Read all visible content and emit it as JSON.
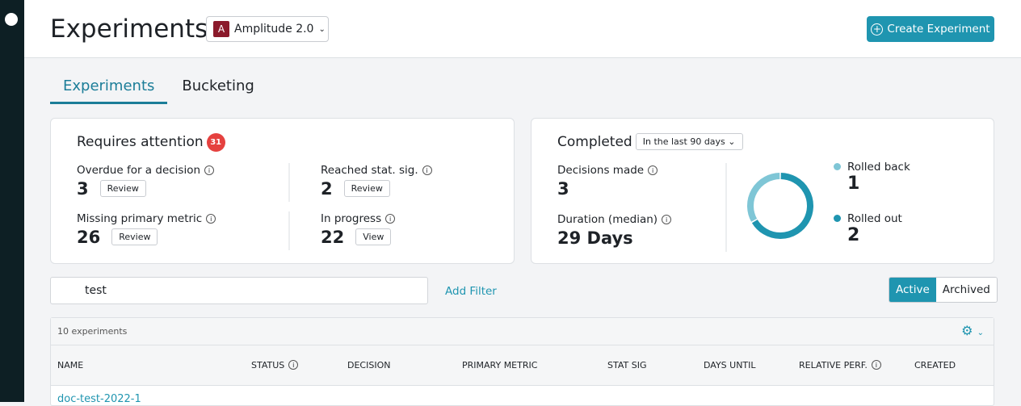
{
  "sidebar": {
    "logo": "A"
  },
  "header": {
    "title": "Experiments",
    "project": {
      "badge": "A",
      "name": "Amplitude 2.0"
    },
    "create_label": "Create Experiment"
  },
  "tabs": [
    {
      "label": "Experiments",
      "active": true
    },
    {
      "label": "Bucketing",
      "active": false
    }
  ],
  "attention": {
    "title": "Requires attention",
    "count": "31",
    "stats": [
      {
        "label": "Overdue for a decision",
        "value": "3",
        "button": "Review"
      },
      {
        "label": "Reached stat. sig.",
        "value": "2",
        "button": "Review"
      },
      {
        "label": "Missing primary metric",
        "value": "26",
        "button": "Review"
      },
      {
        "label": "In progress",
        "value": "22",
        "button": "View"
      }
    ]
  },
  "completed": {
    "title": "Completed",
    "range": "In the last 90 days",
    "decisions_label": "Decisions made",
    "decisions": "3",
    "duration_label": "Duration (median)",
    "duration": "29 Days",
    "legend": [
      {
        "label": "Rolled back",
        "value": "1",
        "color": "#7fc6d6"
      },
      {
        "label": "Rolled out",
        "value": "2",
        "color": "#1f95b0"
      }
    ]
  },
  "search": {
    "value": "test",
    "add_filter": "Add Filter"
  },
  "view_toggle": {
    "active": "Active",
    "archived": "Archived"
  },
  "table": {
    "count": "10 experiments",
    "columns": [
      "NAME",
      "STATUS",
      "DECISION",
      "PRIMARY METRIC",
      "STAT SIG",
      "DAYS UNTIL",
      "RELATIVE PERF.",
      "CREATED"
    ],
    "rows": [
      {
        "name": "doc-test-2022-1"
      }
    ]
  },
  "colors": {
    "accent": "#1f95b0",
    "sidebar": "#0d1f24",
    "alert": "#e5413f"
  }
}
